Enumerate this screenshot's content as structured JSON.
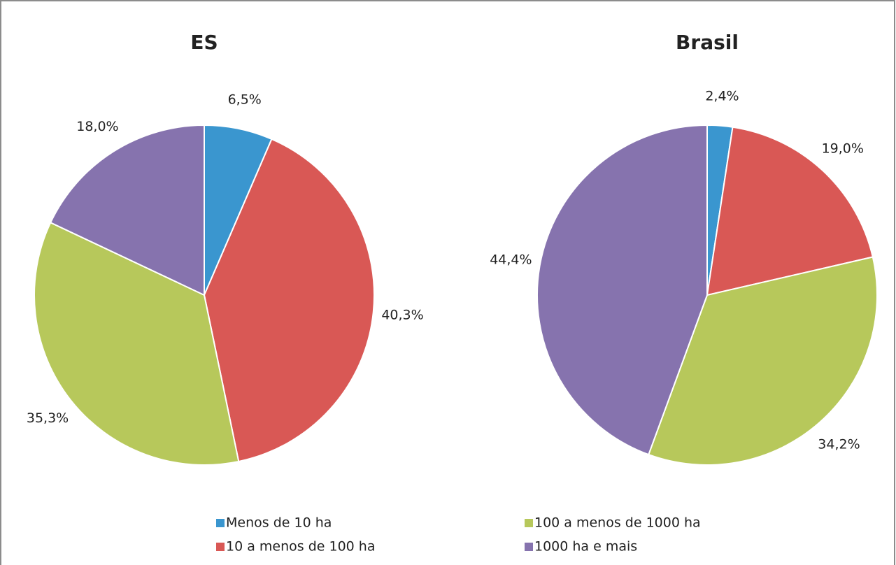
{
  "chart_data": [
    {
      "type": "pie",
      "title": "ES",
      "categories": [
        "Menos de 10 ha",
        "10 a menos de 100 ha",
        "100 a menos de 1000 ha",
        "1000 ha e mais"
      ],
      "values": [
        6.5,
        40.3,
        35.3,
        18.0
      ],
      "value_labels": [
        "6,5%",
        "40,3%",
        "35,3%",
        "18,0%"
      ],
      "colors": [
        "#3a96cf",
        "#d95855",
        "#b7c85b",
        "#8673ae"
      ],
      "legend": "bottom"
    },
    {
      "type": "pie",
      "title": "Brasil",
      "categories": [
        "Menos de 10 ha",
        "10 a menos de 100 ha",
        "100 a menos de 1000 ha",
        "1000 ha e mais"
      ],
      "values": [
        2.4,
        19.0,
        34.2,
        44.4
      ],
      "value_labels": [
        "2,4%",
        "19,0%",
        "34,2%",
        "44,4%"
      ],
      "colors": [
        "#3a96cf",
        "#d95855",
        "#b7c85b",
        "#8673ae"
      ],
      "legend": "bottom"
    }
  ]
}
